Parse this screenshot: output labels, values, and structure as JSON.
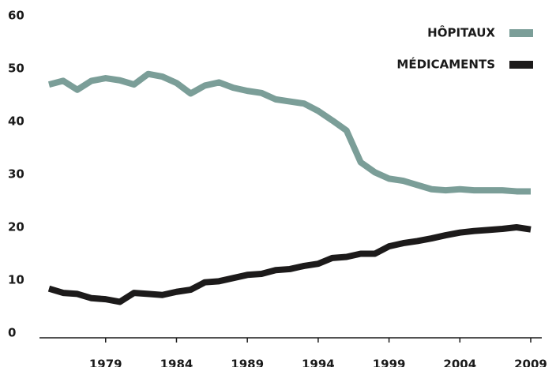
{
  "chart_data": {
    "type": "line",
    "x": [
      1975,
      1976,
      1977,
      1978,
      1979,
      1980,
      1981,
      1982,
      1983,
      1984,
      1985,
      1986,
      1987,
      1988,
      1989,
      1990,
      1991,
      1992,
      1993,
      1994,
      1995,
      1996,
      1997,
      1998,
      1999,
      2000,
      2001,
      2002,
      2003,
      2004,
      2005,
      2006,
      2007,
      2008,
      2009
    ],
    "series": [
      {
        "name": "HÔPITAUX",
        "color": "#7b9e98",
        "values": [
          47,
          47.7,
          46,
          47.7,
          48.2,
          47.8,
          47,
          49,
          48.5,
          47.3,
          45.3,
          46.8,
          47.4,
          46.4,
          45.8,
          45.4,
          44.2,
          43.8,
          43.4,
          42,
          40.2,
          38.3,
          32.3,
          30.4,
          29.2,
          28.8,
          28,
          27.2,
          27,
          27.2,
          27,
          27,
          27,
          26.8,
          26.8
        ]
      },
      {
        "name": "MÉDICAMENTS",
        "color": "#1c1a1a",
        "values": [
          8.4,
          7.6,
          7.4,
          6.6,
          6.4,
          5.9,
          7.6,
          7.4,
          7.2,
          7.8,
          8.2,
          9.6,
          9.8,
          10.4,
          11,
          11.2,
          11.9,
          12.1,
          12.7,
          13.1,
          14.2,
          14.4,
          15,
          15,
          16.4,
          17,
          17.4,
          17.9,
          18.5,
          19,
          19.3,
          19.5,
          19.7,
          20,
          19.6
        ]
      }
    ],
    "xlim": [
      1975,
      2009
    ],
    "xticks": [
      1979,
      1984,
      1989,
      1994,
      1999,
      2004,
      2009
    ],
    "ylim": [
      0,
      60
    ],
    "yticks": [
      0,
      10,
      20,
      30,
      40,
      50,
      60
    ],
    "legend": "upper right"
  }
}
